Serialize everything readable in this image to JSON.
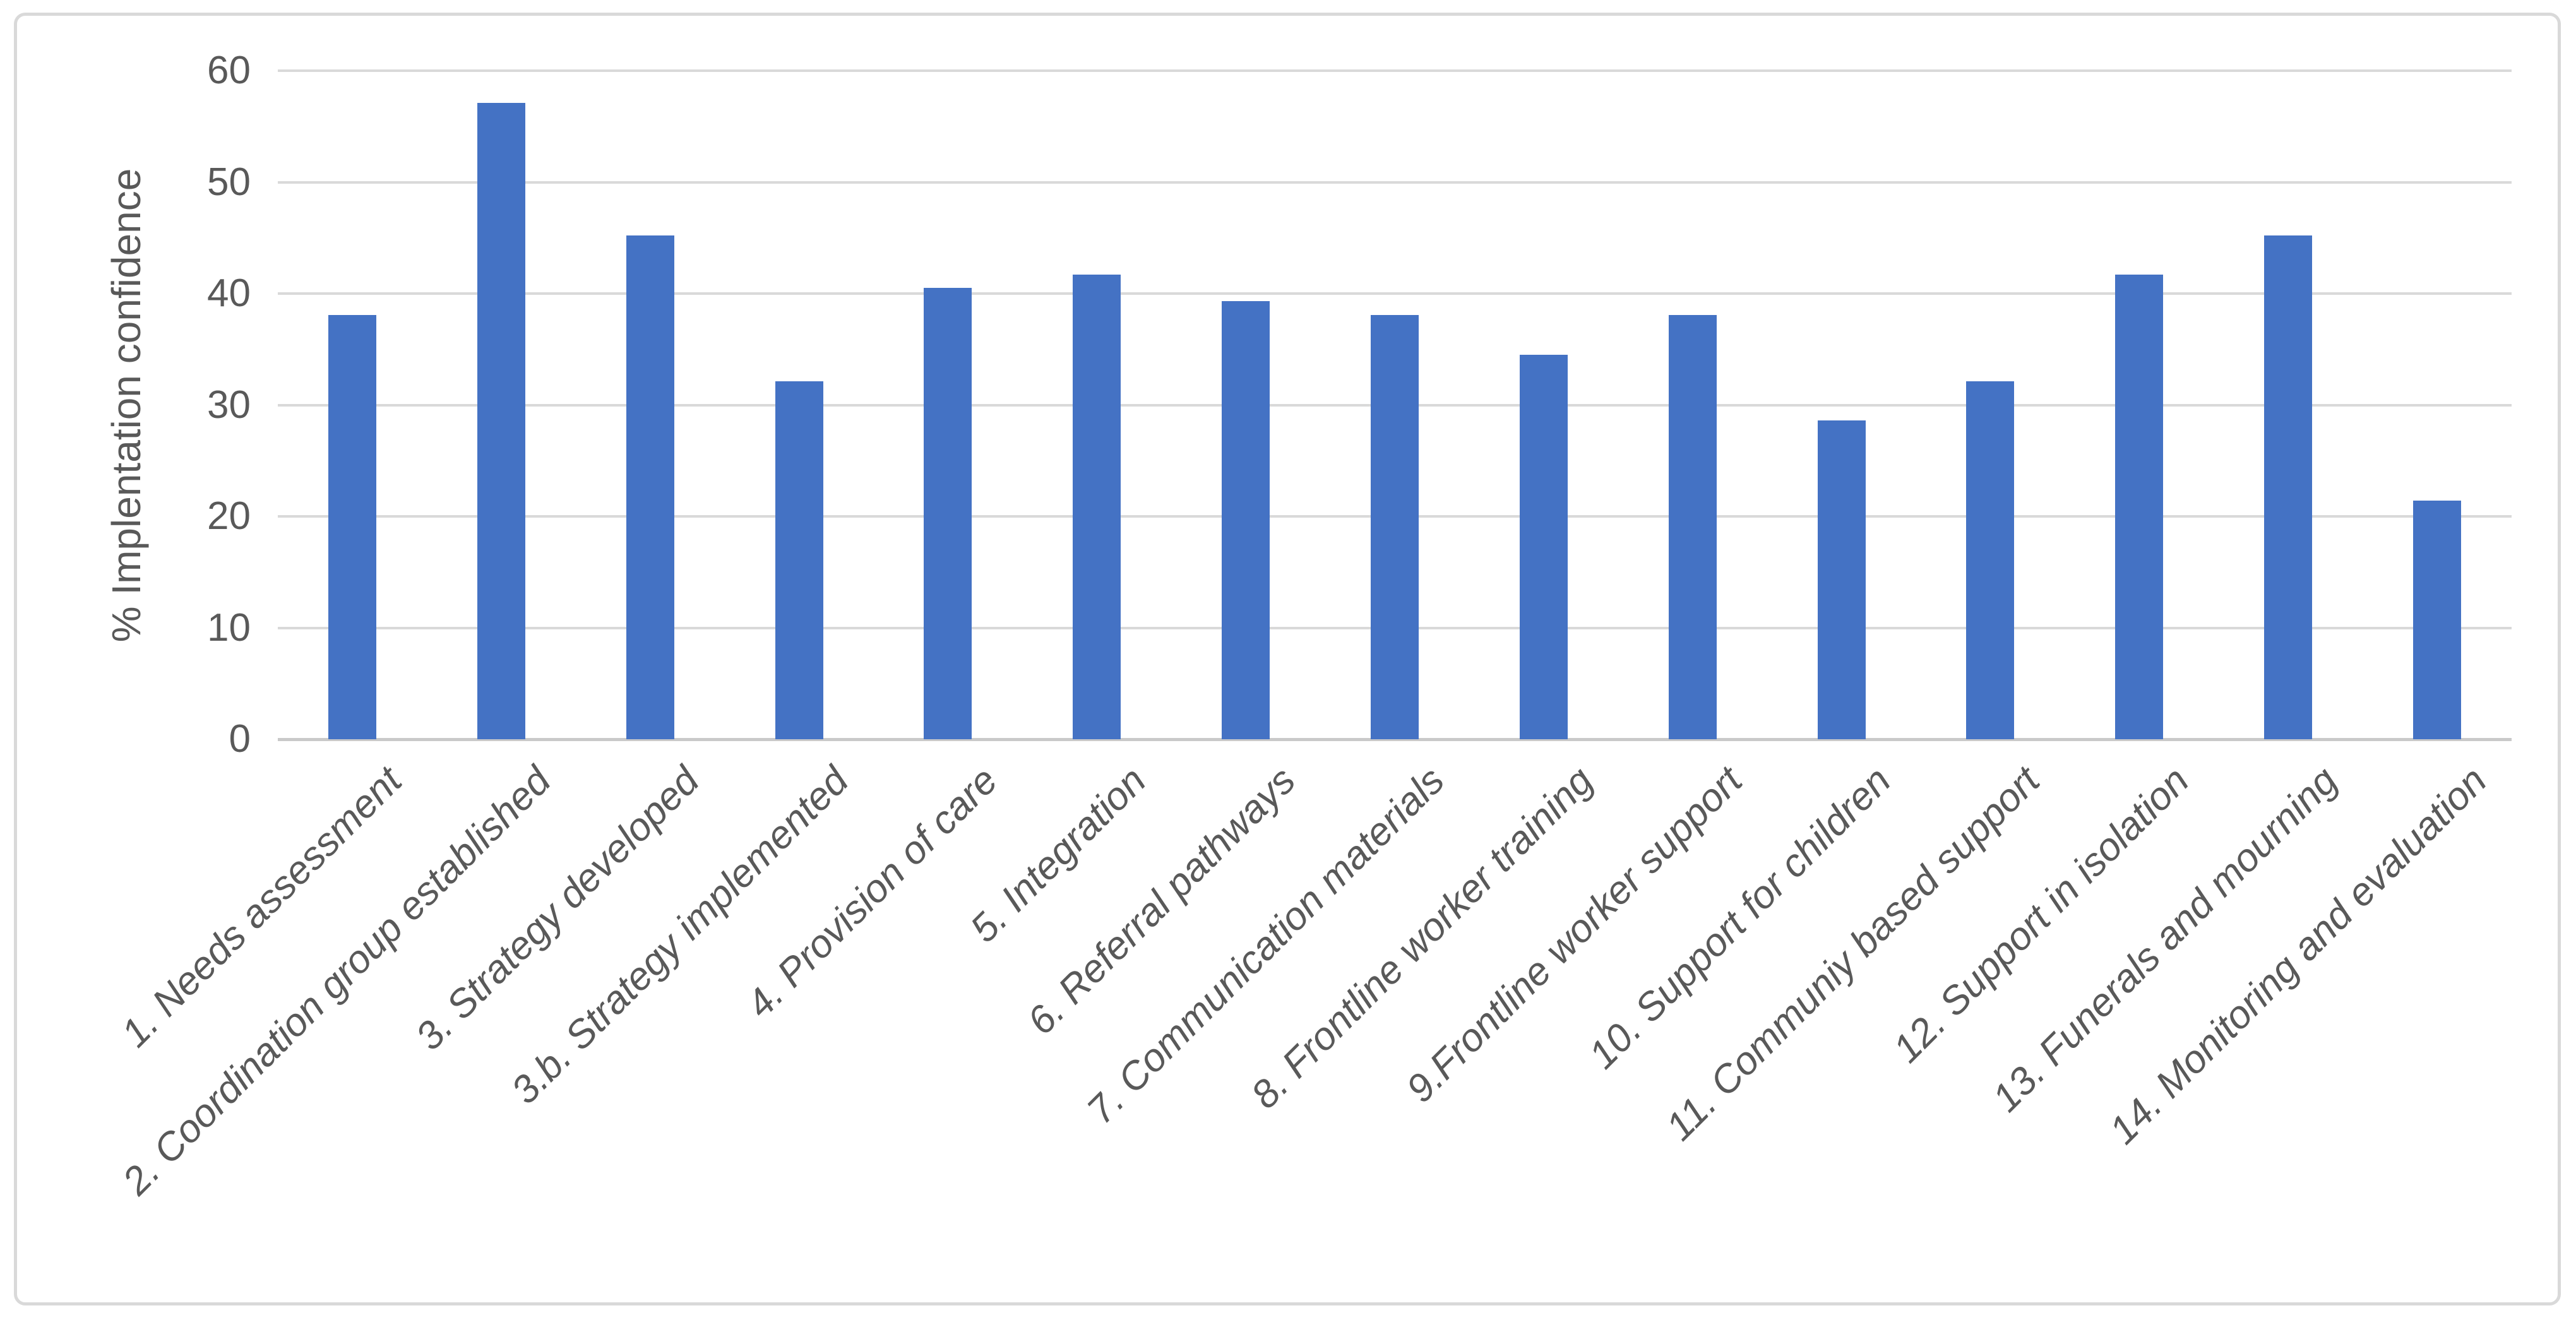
{
  "colors": {
    "bar": "#4472C4",
    "gridline": "#D9D9D9",
    "axis_line": "#C9C9C9",
    "text": "#595959",
    "frame_border": "#D9D9D9",
    "background": "#FFFFFF"
  },
  "y_axis": {
    "title": "% Implentation confidence",
    "ticks": [
      0,
      10,
      20,
      30,
      40,
      50,
      60
    ]
  },
  "chart_data": {
    "type": "bar",
    "title": "",
    "xlabel": "",
    "ylabel": "% Implentation confidence",
    "ylim": [
      0,
      60
    ],
    "grid": "horizontal",
    "legend": "none",
    "categories": [
      "1. Needs assessment",
      "2. Coordination group established",
      "3. Strategy developed",
      "3.b. Strategy implemented",
      "4. Provision of care",
      "5. Integration",
      "6. Referral pathways",
      "7. Communication materials",
      "8. Frontline worker training",
      "9.Frontline worker support",
      "10. Support for children",
      "11. Communiy based support",
      "12. Support in isolation",
      "13. Funerals and mourning",
      "14. Monitoring and evaluation"
    ],
    "values": [
      38.1,
      57.1,
      45.2,
      32.1,
      40.5,
      41.7,
      39.3,
      38.1,
      34.5,
      38.1,
      28.6,
      32.1,
      41.7,
      45.2,
      21.4
    ]
  }
}
